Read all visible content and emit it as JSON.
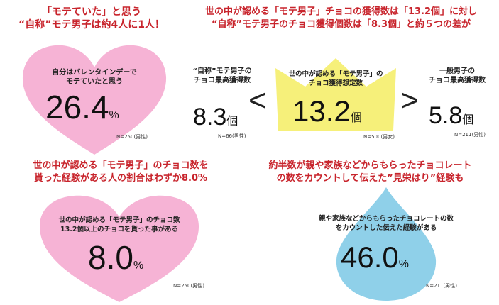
{
  "colors": {
    "heart": "#f6b3d5",
    "crown": "#f6f07a",
    "drop": "#8fd0e9",
    "headline": "#c8242c"
  },
  "top_left": {
    "headline_1": "「モテていた」と思う",
    "headline_2": "“自称”モテ男子は約4人に1人！",
    "heart_label_1": "自分はバレンタインデーで",
    "heart_label_2": "モテていたと思う",
    "value": "26.4",
    "unit": "%",
    "note": "N=250(男性)"
  },
  "top_right": {
    "headline_1": "世の中が認める「モテ男子」チョコの獲得数は「13.2個」に対し",
    "headline_2": "“自称”モテ男子のチョコ獲得個数は「8.3個」と約５つの差が",
    "self": {
      "label_1": "“自称”モテ男子の",
      "label_2": "チョコ最高獲得数",
      "value": "8.3",
      "unit": "個",
      "note": "N=66(男性)"
    },
    "less_than_1": "<",
    "crown": {
      "label_1": "世の中が認める「モテ男子」の",
      "label_2": "チョコ獲得想定数",
      "value": "13.2",
      "unit": "個",
      "note": "N=500(男女)"
    },
    "greater_than": ">",
    "normal": {
      "label_1": "一般男子の",
      "label_2": "チョコ最高獲得数",
      "value": "5.8",
      "unit": "個",
      "note": "N=211(男性)"
    }
  },
  "bottom_left": {
    "headline_1": "世の中が認める「モテ男子」のチョコ数を",
    "headline_2": "貰った経験がある人の割合はわずか8.0%",
    "heart_label_1": "世の中が認める「モテ男子」のチョコ数",
    "heart_label_2": "13.2個以上のチョコを貰った事がある",
    "value": "8.0",
    "unit": "%",
    "note": "N=250(男性)"
  },
  "bottom_right": {
    "headline_1": "約半数が親や家族などからもらったチョコレート",
    "headline_2": "の数をカウントして伝えた”見栄はり”経験も",
    "drop_label_1": "親や家族などからもらったチョコレートの数",
    "drop_label_2": "をカウントした伝えた経験がある",
    "value": "46.0",
    "unit": "%",
    "note": "N=211(男性)"
  }
}
